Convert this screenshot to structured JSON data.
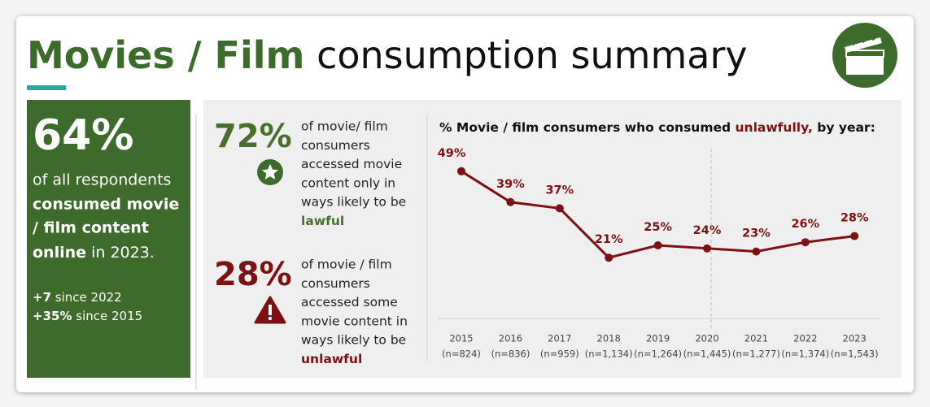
{
  "title_highlight": "Movies / Film",
  "title_rest": "consumption summary",
  "summary": {
    "headline": "64%",
    "line1": "of all respondents",
    "line2": "consumed movie",
    "line3": "/ film content",
    "line4_bold": "online",
    "line4_rest": "in 2023.",
    "changes": [
      {
        "value": "+7",
        "text": "since 2022"
      },
      {
        "value": "+35%",
        "text": "since 2015"
      }
    ]
  },
  "stats": [
    {
      "value": "72%",
      "lines": [
        "of movie/ film",
        "consumers",
        "accessed movie",
        "content only in",
        "ways likely to be"
      ],
      "emphasis": "lawful"
    },
    {
      "value": "28%",
      "lines": [
        "of movie / film",
        "consumers",
        "accessed some",
        "movie content in",
        "ways likely to be"
      ],
      "emphasis": "unlawful"
    }
  ],
  "chart_data": {
    "type": "line",
    "title_before": "% Movie / film consumers who consumed",
    "title_highlight": "unlawfully,",
    "title_after": "by year:",
    "categories": [
      "2015",
      "2016",
      "2017",
      "2018",
      "2019",
      "2020",
      "2021",
      "2022",
      "2023"
    ],
    "sample_sizes": [
      "(n=824)",
      "(n=836)",
      "(n=959)",
      "(n=1,134)",
      "(n=1,264)",
      "(n=1,445)",
      "(n=1,277)",
      "(n=1,374)",
      "(n=1,543)"
    ],
    "values": [
      49,
      39,
      37,
      21,
      25,
      24,
      23,
      26,
      28
    ],
    "value_labels": [
      "49%",
      "39%",
      "37%",
      "21%",
      "25%",
      "24%",
      "23%",
      "26%",
      "28%"
    ],
    "color": "#7b1113",
    "ylim": [
      0,
      65
    ]
  }
}
